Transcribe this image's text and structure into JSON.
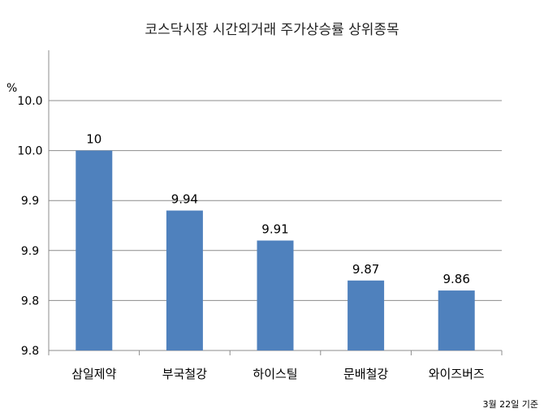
{
  "chart_data": {
    "type": "bar",
    "title": "코스닥시장 시간외거래  주가상승률 상위종목",
    "unit_label": "%",
    "categories": [
      "삼일제약",
      "부국철강",
      "하이스틸",
      "문배철강",
      "와이즈버즈"
    ],
    "values": [
      10,
      9.94,
      9.91,
      9.87,
      9.86
    ],
    "data_labels": [
      "10",
      "9.94",
      "9.91",
      "9.87",
      "9.86"
    ],
    "ylim": [
      9.8,
      10.0
    ],
    "y_ticks": [
      {
        "value": 9.8,
        "label": "9.8"
      },
      {
        "value": 9.85,
        "label": "9.8"
      },
      {
        "value": 9.9,
        "label": "9.9"
      },
      {
        "value": 9.95,
        "label": "9.9"
      },
      {
        "value": 10.0,
        "label": "10.0"
      },
      {
        "value": 10.05,
        "label": "10.0"
      }
    ],
    "grid": true,
    "legend": "none",
    "bar_color": "#4f81bd",
    "footnote": "3월 22일 기준"
  }
}
